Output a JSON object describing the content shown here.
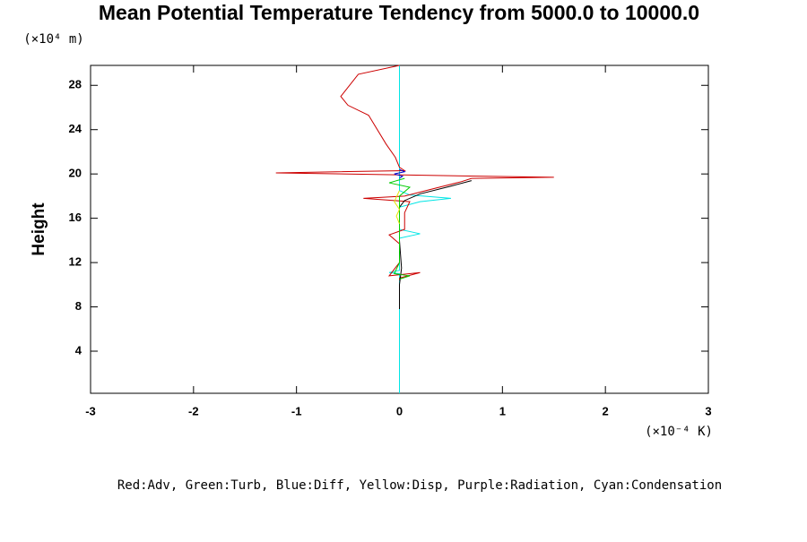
{
  "chart_data": {
    "type": "profile",
    "title": "Mean Potential Temperature Tendency from 5000.0 to 10000.0",
    "y_label": "Height",
    "y_unit_label": "(×10⁴ m)",
    "x_unit_label": "(×10⁻⁴ K)",
    "legend": "Red:Adv, Green:Turb, Blue:Diff, Yellow:Disp, Purple:Radiation, Cyan:Condensation",
    "xlim": [
      -3,
      3
    ],
    "xticks": [
      -3,
      -2,
      -1,
      0,
      1,
      2,
      3
    ],
    "ylim": [
      0.2,
      29.8
    ],
    "yticks": [
      4,
      8,
      12,
      16,
      20,
      24,
      28
    ],
    "series": [
      {
        "color": "#00e5e5",
        "values": [
          0,
          0,
          0,
          -0.1,
          0,
          0,
          0.2,
          0,
          0,
          0.2,
          0.5,
          0.1,
          0,
          0,
          0
        ],
        "heights": [
          0.2,
          10.8,
          11.0,
          11.1,
          11.3,
          14.2,
          14.6,
          15.0,
          17.0,
          17.5,
          17.8,
          18.1,
          18.5,
          20.0,
          29.8
        ]
      },
      {
        "color": "#cc0000",
        "values": [
          0,
          -0.4,
          -0.57,
          -0.5,
          -0.3,
          -0.13,
          -0.04,
          0,
          0.05,
          -1.2,
          0.1,
          1.5,
          0.7,
          0.6,
          0.3,
          0.05,
          -0.35,
          0.1,
          0.05,
          0.05,
          -0.1,
          0,
          0,
          -0.1,
          0.2,
          0,
          0
        ],
        "heights": [
          29.8,
          29.0,
          27.0,
          26.2,
          25.3,
          22.7,
          21.5,
          20.6,
          20.3,
          20.1,
          19.9,
          19.7,
          19.6,
          19.3,
          18.6,
          18.0,
          17.8,
          17.5,
          16.5,
          15.0,
          14.5,
          13.7,
          12.0,
          10.8,
          11.1,
          10.6,
          10.4
        ]
      },
      {
        "color": "#000000",
        "values": [
          0.7,
          0.5,
          0.2,
          0.05,
          0,
          0,
          0.02,
          0,
          0
        ],
        "heights": [
          19.4,
          18.9,
          18.2,
          17.6,
          17.0,
          14.0,
          11.5,
          10.0,
          7.8
        ]
      },
      {
        "color": "#00cc00",
        "values": [
          0.05,
          -0.1,
          0.1,
          0,
          0,
          -0.05,
          0.1,
          0
        ],
        "heights": [
          19.6,
          19.2,
          18.8,
          18.0,
          12.0,
          11.0,
          10.8,
          10.5
        ]
      },
      {
        "color": "#e5e500",
        "values": [
          0,
          -0.05,
          0,
          -0.03,
          0
        ],
        "heights": [
          18.5,
          17.5,
          16.8,
          16.2,
          15.5
        ]
      },
      {
        "color": "#0000cc",
        "values": [
          0,
          0.05,
          -0.05,
          0.03,
          0
        ],
        "heights": [
          20.4,
          20.2,
          20.0,
          19.8,
          19.6
        ]
      }
    ]
  }
}
